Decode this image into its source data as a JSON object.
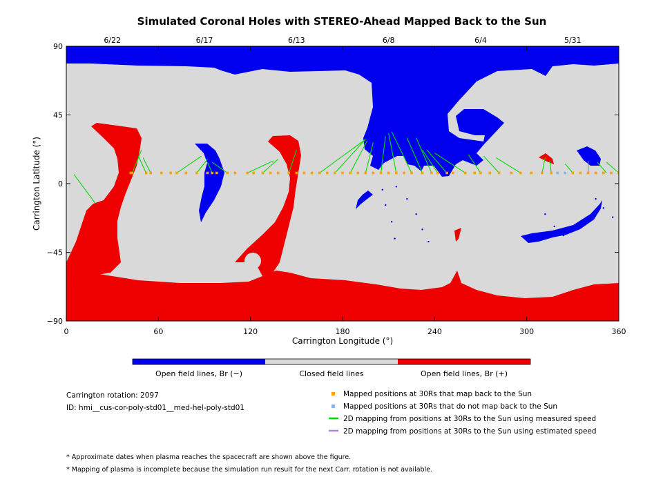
{
  "chart_data": {
    "type": "map",
    "title": "Simulated Coronal Holes with STEREO-Ahead Mapped Back to the Sun",
    "xlabel": "Carrington Longitude (°)",
    "ylabel": "Carrington Latitude (°)",
    "xlim": [
      0,
      360
    ],
    "ylim": [
      -90,
      90
    ],
    "x_ticks": [
      "0",
      "60",
      "120",
      "180",
      "240",
      "300",
      "360"
    ],
    "y_ticks": [
      "90",
      "45",
      "0",
      "−45",
      "−90"
    ],
    "top_dates": [
      {
        "label": "6/22",
        "x": 30
      },
      {
        "label": "6/17",
        "x": 90
      },
      {
        "label": "6/13",
        "x": 150
      },
      {
        "label": "6/8",
        "x": 210
      },
      {
        "label": "6/4",
        "x": 270
      },
      {
        "label": "5/31",
        "x": 330
      }
    ],
    "colorbar": [
      {
        "label": "Open field lines, Br (−)",
        "color": "#0000ee"
      },
      {
        "label": "Closed field lines",
        "color": "#d9d9d9"
      },
      {
        "label": "Open field lines, Br (+)",
        "color": "#ee0000"
      }
    ],
    "mapped_latitude": 7,
    "mapped_longitudes": [
      42,
      43,
      52,
      55,
      62,
      68,
      72,
      78,
      85,
      92,
      95,
      98,
      105,
      110,
      118,
      122,
      128,
      133,
      138,
      145,
      150,
      155,
      160,
      165,
      170,
      175,
      180,
      185,
      190,
      195,
      200,
      205,
      210,
      215,
      220,
      225,
      232,
      238,
      242,
      248,
      252,
      260,
      266,
      270,
      276,
      282,
      290,
      296,
      303,
      310,
      316,
      330,
      335,
      340,
      345,
      350,
      355,
      360
    ],
    "unmapped_longitudes": [
      320,
      325
    ],
    "mapping_lines_measured": [
      [
        5,
        6,
        19,
        -13
      ],
      [
        43,
        7,
        49,
        22
      ],
      [
        52,
        7,
        47,
        18
      ],
      [
        55,
        7,
        50,
        17
      ],
      [
        72,
        7,
        88,
        18
      ],
      [
        85,
        7,
        92,
        16
      ],
      [
        95,
        7,
        92,
        14
      ],
      [
        105,
        7,
        95,
        14
      ],
      [
        118,
        7,
        135,
        15
      ],
      [
        128,
        7,
        138,
        16
      ],
      [
        145,
        7,
        150,
        22
      ],
      [
        165,
        7,
        195,
        29
      ],
      [
        175,
        7,
        195,
        29
      ],
      [
        185,
        7,
        196,
        28
      ],
      [
        195,
        7,
        200,
        27
      ],
      [
        205,
        7,
        208,
        31
      ],
      [
        215,
        7,
        210,
        33
      ],
      [
        225,
        7,
        212,
        34
      ],
      [
        232,
        7,
        222,
        30
      ],
      [
        238,
        7,
        228,
        30
      ],
      [
        242,
        7,
        232,
        22
      ],
      [
        248,
        7,
        235,
        22
      ],
      [
        260,
        7,
        240,
        20
      ],
      [
        270,
        7,
        262,
        19
      ],
      [
        282,
        7,
        272,
        18
      ],
      [
        296,
        7,
        280,
        17
      ],
      [
        310,
        7,
        312,
        17
      ],
      [
        316,
        7,
        315,
        15
      ],
      [
        330,
        7,
        325,
        13
      ],
      [
        340,
        7,
        340,
        15
      ],
      [
        352,
        7,
        346,
        14
      ],
      [
        360,
        7,
        352,
        14
      ]
    ],
    "mapping_lines_estimated": []
  },
  "info": {
    "rotation": "Carrington rotation: 2097",
    "run_id": "ID: hmi__cus-cor-poly-std01__med-hel-poly-std01"
  },
  "legend": [
    {
      "label": "Mapped positions at 30Rs that map back to the Sun",
      "color": "#f5a300",
      "kind": "square"
    },
    {
      "label": "Mapped positions at 30Rs that do not map back to the Sun",
      "color": "#7fb8e8",
      "kind": "square"
    },
    {
      "label": "2D mapping from positions at 30Rs to the Sun using measured speed",
      "color": "#00dd00",
      "kind": "line"
    },
    {
      "label": "2D mapping from positions at 30Rs to the Sun using estimated speed",
      "color": "#b57fe0",
      "kind": "line"
    }
  ],
  "footnotes": [
    "* Approximate dates when plasma reaches the spacecraft are shown above the figure.",
    "* Mapping of plasma is incomplete because the simulation run result for the next Carr. rotation is not available."
  ],
  "colors": {
    "negative": "#0000ee",
    "closed": "#d9d9d9",
    "positive": "#ee0000",
    "mapped": "#f5a300",
    "unmapped": "#7fb8e8",
    "measured": "#00dd00"
  }
}
